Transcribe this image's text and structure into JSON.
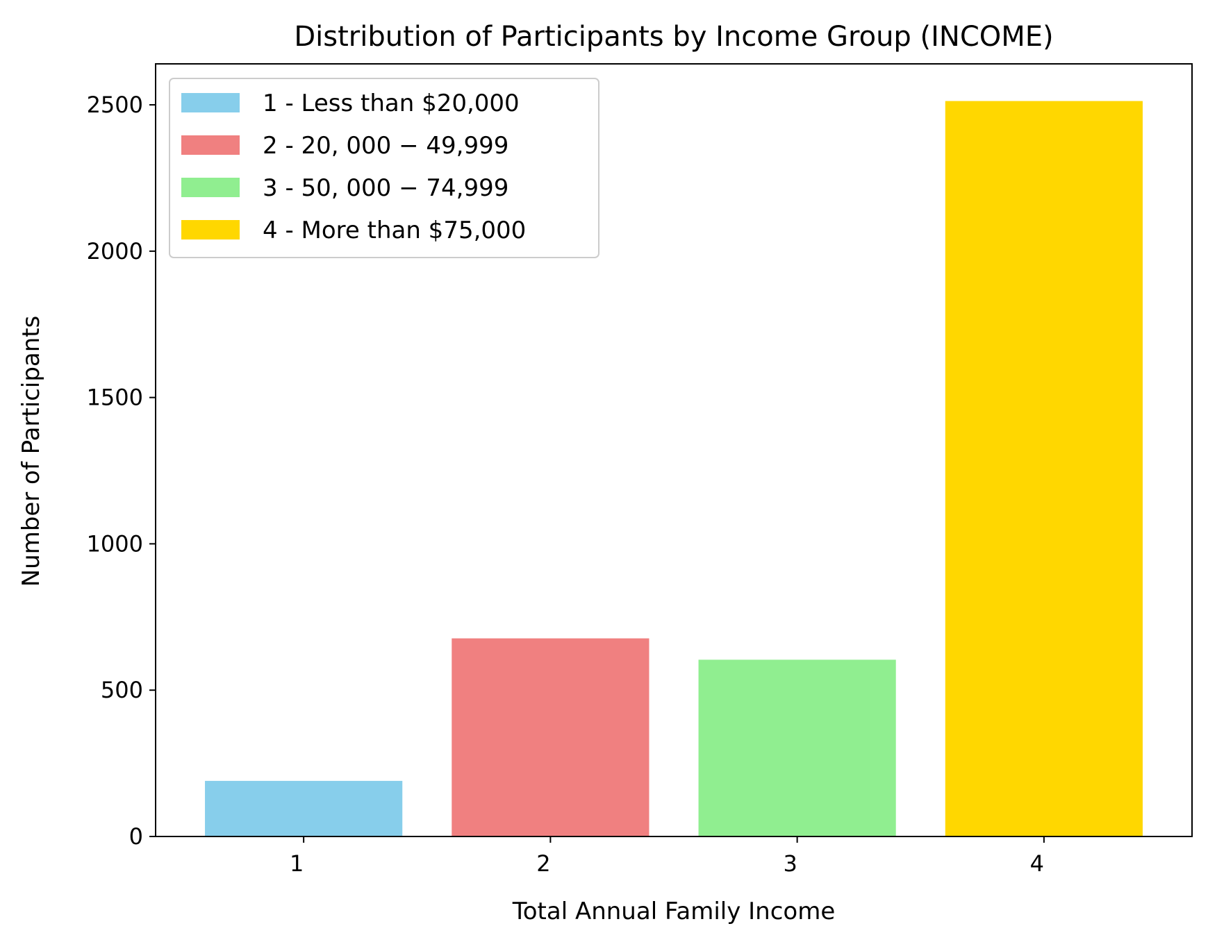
{
  "chart_data": {
    "type": "bar",
    "title": "Distribution of Participants by Income Group (INCOME)",
    "xlabel": "Total Annual Family Income",
    "ylabel": "Number of Participants",
    "categories": [
      "1",
      "2",
      "3",
      "4"
    ],
    "values": [
      190,
      677,
      604,
      2513
    ],
    "colors": [
      "#87CEEB",
      "#F08080",
      "#90EE90",
      "#FFD700"
    ],
    "ylim": [
      0,
      2640
    ],
    "yticks": [
      0,
      500,
      1000,
      1500,
      2000,
      2500
    ],
    "grid": false,
    "legend": {
      "placement": "top-left",
      "entries": [
        "1 - Less than $20,000",
        "2 - 20, 000 − 49,999",
        "3 - 50, 000 − 74,999",
        "4 - More than $75,000"
      ]
    }
  }
}
